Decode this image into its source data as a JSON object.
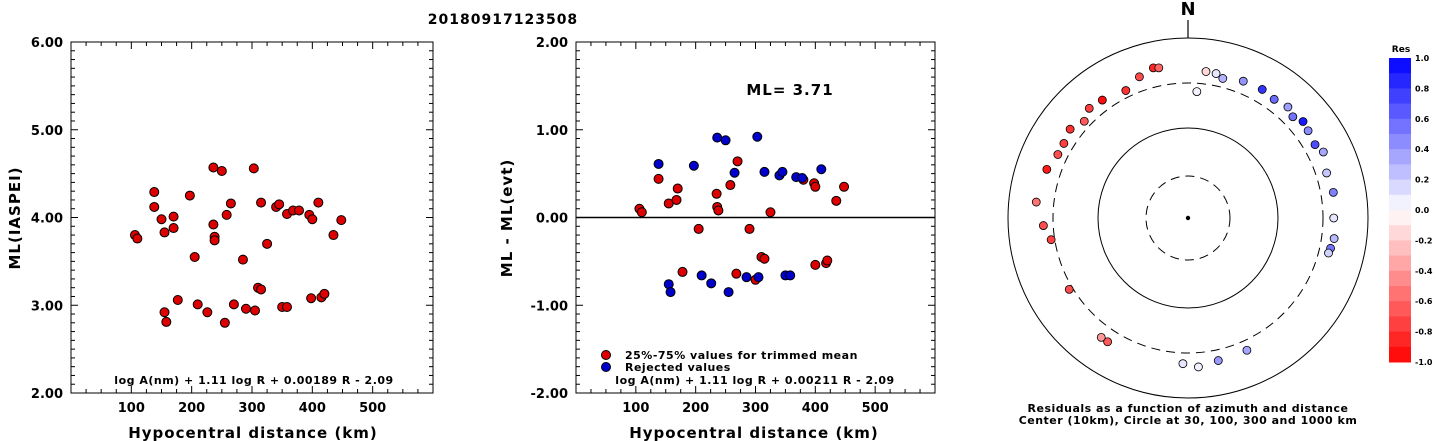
{
  "title": "20180917123508",
  "chart_data": [
    {
      "type": "scatter",
      "ylabel": "ML(IASPEI)",
      "xlabel": "Hypocentral distance (km)",
      "xlim": [
        0,
        600
      ],
      "ylim": [
        2.0,
        6.0
      ],
      "xticks": [
        "100",
        "200",
        "300",
        "400",
        "500"
      ],
      "yticks": [
        "2.00",
        "3.00",
        "4.00",
        "5.00",
        "6.00"
      ],
      "formula": "log A(nm) + 1.11 log R + 0.00189 R - 2.09",
      "marker_color": "#dd0000",
      "points": [
        [
          106,
          3.8
        ],
        [
          110,
          3.76
        ],
        [
          138,
          4.29
        ],
        [
          138,
          4.12
        ],
        [
          150,
          3.98
        ],
        [
          155,
          2.92
        ],
        [
          158,
          2.81
        ],
        [
          155,
          3.83
        ],
        [
          170,
          3.88
        ],
        [
          170,
          4.01
        ],
        [
          177,
          3.06
        ],
        [
          197,
          4.25
        ],
        [
          205,
          3.55
        ],
        [
          210,
          3.01
        ],
        [
          226,
          2.92
        ],
        [
          236,
          4.57
        ],
        [
          236,
          3.92
        ],
        [
          238,
          3.78
        ],
        [
          238,
          3.74
        ],
        [
          250,
          4.53
        ],
        [
          255,
          2.8
        ],
        [
          258,
          4.03
        ],
        [
          265,
          4.16
        ],
        [
          270,
          3.01
        ],
        [
          285,
          3.52
        ],
        [
          290,
          2.96
        ],
        [
          303,
          4.56
        ],
        [
          305,
          2.94
        ],
        [
          310,
          3.2
        ],
        [
          315,
          4.17
        ],
        [
          315,
          3.18
        ],
        [
          325,
          3.7
        ],
        [
          340,
          4.12
        ],
        [
          345,
          4.15
        ],
        [
          350,
          2.98
        ],
        [
          358,
          4.04
        ],
        [
          358,
          2.98
        ],
        [
          368,
          4.08
        ],
        [
          378,
          4.08
        ],
        [
          395,
          4.03
        ],
        [
          400,
          3.98
        ],
        [
          398,
          3.08
        ],
        [
          410,
          4.17
        ],
        [
          415,
          3.09
        ],
        [
          420,
          3.13
        ],
        [
          435,
          3.8
        ],
        [
          448,
          3.97
        ]
      ]
    },
    {
      "type": "scatter",
      "ylabel": "ML - ML(evt)",
      "xlabel": "Hypocentral distance (km)",
      "xlim": [
        0,
        600
      ],
      "ylim": [
        -2.0,
        2.0
      ],
      "xticks": [
        "100",
        "200",
        "300",
        "400",
        "500"
      ],
      "yticks": [
        "-2.00",
        "-1.00",
        "0.00",
        "1.00",
        "2.00"
      ],
      "reference_line": 0.0,
      "annotation": "ML= 3.71",
      "formula": "log A(nm) + 1.11 log R + 0.00211 R - 2.09",
      "legend": [
        {
          "label": "25%-75% values for trimmed mean",
          "color": "#dd0000"
        },
        {
          "label": "Rejected values",
          "color": "#0000cc"
        }
      ],
      "series": [
        {
          "name": "25%-75% values for trimmed mean",
          "color": "#dd0000",
          "points": [
            [
              106,
              0.1
            ],
            [
              110,
              0.06
            ],
            [
              138,
              0.44
            ],
            [
              155,
              0.16
            ],
            [
              168,
              0.2
            ],
            [
              170,
              0.33
            ],
            [
              178,
              -0.62
            ],
            [
              205,
              -0.13
            ],
            [
              235,
              0.27
            ],
            [
              236,
              0.12
            ],
            [
              238,
              0.08
            ],
            [
              258,
              0.37
            ],
            [
              268,
              -0.64
            ],
            [
              270,
              0.64
            ],
            [
              290,
              -0.13
            ],
            [
              300,
              -0.71
            ],
            [
              310,
              -0.45
            ],
            [
              315,
              -0.47
            ],
            [
              325,
              0.06
            ],
            [
              380,
              0.43
            ],
            [
              398,
              0.39
            ],
            [
              400,
              0.35
            ],
            [
              400,
              -0.54
            ],
            [
              418,
              -0.52
            ],
            [
              420,
              -0.49
            ],
            [
              435,
              0.19
            ],
            [
              448,
              0.35
            ]
          ]
        },
        {
          "name": "Rejected values",
          "color": "#0000cc",
          "points": [
            [
              138,
              0.61
            ],
            [
              155,
              -0.76
            ],
            [
              158,
              -0.85
            ],
            [
              197,
              0.59
            ],
            [
              210,
              -0.66
            ],
            [
              226,
              -0.75
            ],
            [
              236,
              0.91
            ],
            [
              250,
              0.88
            ],
            [
              255,
              -0.85
            ],
            [
              265,
              0.51
            ],
            [
              285,
              -0.68
            ],
            [
              303,
              0.92
            ],
            [
              305,
              -0.68
            ],
            [
              315,
              0.52
            ],
            [
              340,
              0.48
            ],
            [
              345,
              0.52
            ],
            [
              350,
              -0.66
            ],
            [
              358,
              -0.66
            ],
            [
              368,
              0.46
            ],
            [
              378,
              0.45
            ],
            [
              410,
              0.55
            ]
          ]
        }
      ]
    },
    {
      "type": "polar-scatter",
      "north_label": "N",
      "caption_line1": "Residuals as a function of azimuth and distance",
      "caption_line2": "Center (10km), Circle at 30, 100, 300 and 1000 km",
      "colorbar_title": "Res",
      "colorbar_ticks": [
        "1.0",
        "0.8",
        "0.6",
        "0.4",
        "0.2",
        "0.0",
        "-0.2",
        "-0.4",
        "-0.6",
        "-0.8",
        "-1.0"
      ],
      "rings_km": [
        30,
        100,
        300,
        1000
      ],
      "points": [
        {
          "az": 14,
          "dist": 380,
          "res": 0.3
        },
        {
          "az": 22,
          "dist": 420,
          "res": 0.42
        },
        {
          "az": 30,
          "dist": 430,
          "res": 0.8
        },
        {
          "az": 36,
          "dist": 410,
          "res": 0.58
        },
        {
          "az": 42,
          "dist": 440,
          "res": 0.38
        },
        {
          "az": 46,
          "dist": 400,
          "res": 0.55
        },
        {
          "az": 50,
          "dist": 450,
          "res": 0.9
        },
        {
          "az": 54,
          "dist": 430,
          "res": 0.45
        },
        {
          "az": 60,
          "dist": 410,
          "res": 0.7
        },
        {
          "az": 64,
          "dist": 455,
          "res": 0.35
        },
        {
          "az": 72,
          "dist": 400,
          "res": 0.22
        },
        {
          "az": 80,
          "dist": 420,
          "res": 0.5
        },
        {
          "az": 90,
          "dist": 400,
          "res": 0.1
        },
        {
          "az": 98,
          "dist": 420,
          "res": 0.28
        },
        {
          "az": 102,
          "dist": 400,
          "res": 0.55
        },
        {
          "az": 104,
          "dist": 390,
          "res": 0.18
        },
        {
          "az": 7,
          "dist": 420,
          "res": -0.15
        },
        {
          "az": 11,
          "dist": 415,
          "res": 0.1
        },
        {
          "az": 4,
          "dist": 245,
          "res": 0.05
        },
        {
          "az": 168,
          "dist": 400,
          "res": 0.4
        },
        {
          "az": 176,
          "dist": 440,
          "res": 0.05
        },
        {
          "az": 182,
          "dist": 400,
          "res": 0.1
        },
        {
          "az": 156,
          "dist": 390,
          "res": 0.35
        },
        {
          "az": 213,
          "dist": 420,
          "res": -0.65
        },
        {
          "az": 216,
          "dist": 420,
          "res": -0.4
        },
        {
          "az": 239,
          "dist": 330,
          "res": -0.7
        },
        {
          "az": 261,
          "dist": 330,
          "res": -0.75
        },
        {
          "az": 267,
          "dist": 390,
          "res": -0.7
        },
        {
          "az": 276,
          "dist": 480,
          "res": -0.55
        },
        {
          "az": 289,
          "dist": 440,
          "res": -0.9
        },
        {
          "az": 296,
          "dist": 390,
          "res": -0.7
        },
        {
          "az": 301,
          "dist": 390,
          "res": -0.75
        },
        {
          "az": 307,
          "dist": 420,
          "res": -0.8
        },
        {
          "az": 313,
          "dist": 360,
          "res": -0.65
        },
        {
          "az": 318,
          "dist": 420,
          "res": -0.75
        },
        {
          "az": 324,
          "dist": 400,
          "res": -0.95
        },
        {
          "az": 334,
          "dist": 360,
          "res": -0.8
        },
        {
          "az": 341,
          "dist": 440,
          "res": -0.7
        },
        {
          "az": 347,
          "dist": 500,
          "res": -0.85
        },
        {
          "az": 349,
          "dist": 485,
          "res": -0.6
        }
      ]
    }
  ]
}
